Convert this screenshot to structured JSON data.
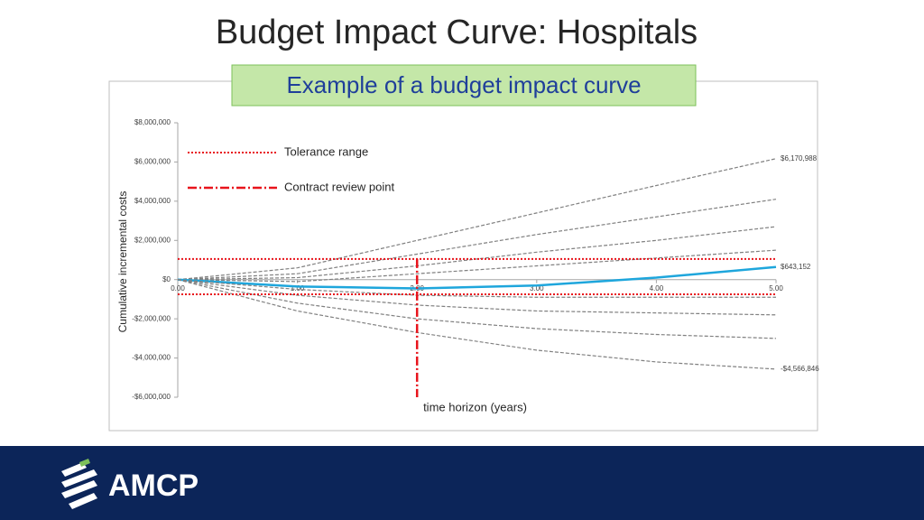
{
  "header": {
    "title": "Budget Impact Curve: Hospitals",
    "subtitle": "Example of a budget impact curve"
  },
  "footer": {
    "logo": "AMCP"
  },
  "chart_data": {
    "type": "line",
    "x_label": "time horizon (years)",
    "y_label": "Cumulative incremental costs",
    "x": [
      0,
      1,
      2,
      3,
      4,
      5
    ],
    "xlim": [
      0,
      5
    ],
    "xticks": [
      {
        "value": 0,
        "label": "0.00"
      },
      {
        "value": 1,
        "label": "1.00"
      },
      {
        "value": 2,
        "label": "2.00"
      },
      {
        "value": 3,
        "label": "3.00"
      },
      {
        "value": 4,
        "label": "4.00"
      },
      {
        "value": 5,
        "label": "5.00"
      }
    ],
    "ylim": [
      -6000000,
      8000000
    ],
    "yticks": [
      {
        "value": -6000000,
        "label": "-$6,000,000"
      },
      {
        "value": -4000000,
        "label": "-$4,000,000"
      },
      {
        "value": -2000000,
        "label": "-$2,000,000"
      },
      {
        "value": 0,
        "label": "$0"
      },
      {
        "value": 2000000,
        "label": "$2,000,000"
      },
      {
        "value": 4000000,
        "label": "$4,000,000"
      },
      {
        "value": 6000000,
        "label": "$6,000,000"
      },
      {
        "value": 8000000,
        "label": "$8,000,000"
      }
    ],
    "grid": false,
    "series": [
      {
        "color": "#808080",
        "dashed": true,
        "values": [
          0,
          600000,
          2000000,
          3400000,
          4800000,
          6170988
        ],
        "end_label": "$6,170,988"
      },
      {
        "color": "#808080",
        "dashed": true,
        "values": [
          0,
          300000,
          1300000,
          2300000,
          3200000,
          4100000
        ]
      },
      {
        "color": "#808080",
        "dashed": true,
        "values": [
          0,
          100000,
          700000,
          1400000,
          2000000,
          2700000
        ]
      },
      {
        "color": "#808080",
        "dashed": true,
        "values": [
          0,
          -100000,
          300000,
          700000,
          1100000,
          1500000
        ]
      },
      {
        "color": "#1ea6dc",
        "dashed": false,
        "values": [
          0,
          -350000,
          -450000,
          -300000,
          100000,
          643152
        ],
        "end_label": "$643,152"
      },
      {
        "color": "#808080",
        "dashed": true,
        "values": [
          0,
          -500000,
          -800000,
          -900000,
          -900000,
          -900000
        ]
      },
      {
        "color": "#808080",
        "dashed": true,
        "values": [
          0,
          -800000,
          -1300000,
          -1600000,
          -1700000,
          -1800000
        ]
      },
      {
        "color": "#808080",
        "dashed": true,
        "values": [
          0,
          -1200000,
          -2000000,
          -2500000,
          -2800000,
          -3000000
        ]
      },
      {
        "color": "#808080",
        "dashed": true,
        "values": [
          0,
          -1600000,
          -2700000,
          -3600000,
          -4200000,
          -4566846
        ],
        "end_label": "-$4,566,846"
      }
    ],
    "tolerance": {
      "name": "Tolerance range",
      "color": "#e8141c",
      "values": [
        1050000,
        -750000
      ]
    },
    "contract_review": {
      "name": "Contract review point",
      "color": "#e8141c",
      "x": 2
    }
  }
}
